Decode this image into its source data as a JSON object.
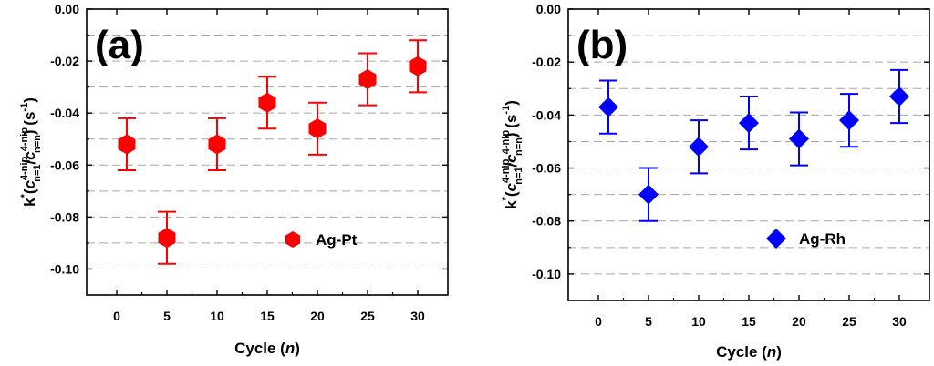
{
  "chart_data": [
    {
      "type": "scatter",
      "panel_label": "(a)",
      "xlabel_main": "Cycle (",
      "xlabel_var": "n",
      "xlabel_end": ")",
      "ylabel": {
        "k": "k",
        "star": "*",
        "open": "(",
        "c1": "c",
        "sup1": "4-nip",
        "sub1": "n=1",
        "slash": "/",
        "c2": "c",
        "sup2": "4-nip",
        "sub2": "n=n",
        "unit": ") (s",
        "unit_sup": "-1",
        "close": ")"
      },
      "xlim": [
        -3,
        33
      ],
      "ylim": [
        -0.11,
        0.0
      ],
      "x_ticks": [
        0,
        5,
        10,
        15,
        20,
        25,
        30
      ],
      "x_tick_labels": [
        "0",
        "5",
        "10",
        "15",
        "20",
        "25",
        "30"
      ],
      "y_ticks": [
        0.0,
        -0.02,
        -0.04,
        -0.06,
        -0.08,
        -0.1
      ],
      "y_tick_labels": [
        "0.00",
        "-0.02",
        "-0.04",
        "-0.06",
        "-0.08",
        "-0.10"
      ],
      "grid": "horizontal dashed",
      "legend_position": "lower-right",
      "series": [
        {
          "name": "Ag-Pt",
          "marker": "hexagon",
          "color": "#ff0000",
          "x": [
            1,
            5,
            10,
            15,
            20,
            25,
            30
          ],
          "y": [
            -0.052,
            -0.088,
            -0.052,
            -0.036,
            -0.046,
            -0.027,
            -0.022
          ],
          "err": [
            0.01,
            0.01,
            0.01,
            0.01,
            0.01,
            0.01,
            0.01
          ]
        }
      ]
    },
    {
      "type": "scatter",
      "panel_label": "(b)",
      "xlabel_main": "Cycle (",
      "xlabel_var": "n",
      "xlabel_end": ")",
      "ylabel": {
        "k": "k",
        "star": "*",
        "open": "(",
        "c1": "c",
        "sup1": "4-nip",
        "sub1": "n=1",
        "slash": "/",
        "c2": "c",
        "sup2": "4-nip",
        "sub2": "n=n",
        "unit": ") (s",
        "unit_sup": "-1",
        "close": ")"
      },
      "xlim": [
        -3,
        33
      ],
      "ylim": [
        -0.11,
        0.0
      ],
      "x_ticks": [
        0,
        5,
        10,
        15,
        20,
        25,
        30
      ],
      "x_tick_labels": [
        "0",
        "5",
        "10",
        "15",
        "20",
        "25",
        "30"
      ],
      "y_ticks": [
        0.0,
        -0.02,
        -0.04,
        -0.06,
        -0.08,
        -0.1
      ],
      "y_tick_labels": [
        "0.00",
        "-0.02",
        "-0.04",
        "-0.06",
        "-0.08",
        "-0.10"
      ],
      "grid": "horizontal dashed",
      "legend_position": "lower-right",
      "series": [
        {
          "name": "Ag-Rh",
          "marker": "diamond",
          "color": "#0000ff",
          "x": [
            1,
            5,
            10,
            15,
            20,
            25,
            30
          ],
          "y": [
            -0.037,
            -0.07,
            -0.052,
            -0.043,
            -0.049,
            -0.042,
            -0.033
          ],
          "err": [
            0.01,
            0.01,
            0.01,
            0.01,
            0.01,
            0.01,
            0.01
          ]
        }
      ]
    }
  ]
}
